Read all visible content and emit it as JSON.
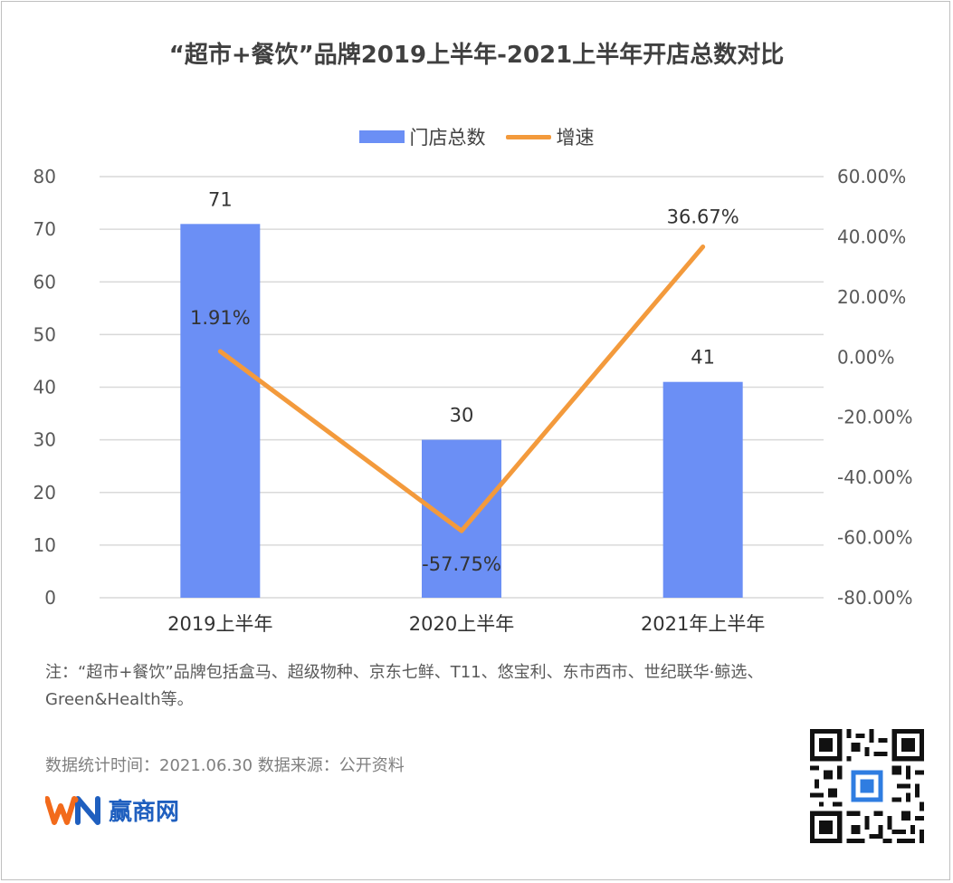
{
  "title": "“超市+餐饮”品牌2019上半年-2021上半年开店总数对比",
  "legend": {
    "bar_label": "门店总数",
    "line_label": "增速"
  },
  "colors": {
    "bar": "#6b8ff5",
    "line": "#f39a3c",
    "grid": "#d9d9d9",
    "axis_text": "#595959",
    "brand_blue": "#1f5fbf",
    "brand_orange": "#f26a1b"
  },
  "chart_data": {
    "type": "bar",
    "categories": [
      "2019上半年",
      "2020上半年",
      "2021年上半年"
    ],
    "series": [
      {
        "name": "门店总数",
        "type": "bar",
        "axis": "left",
        "values": [
          71,
          30,
          41
        ],
        "labels": [
          "71",
          "30",
          "41"
        ]
      },
      {
        "name": "增速",
        "type": "line",
        "axis": "right",
        "values": [
          1.91,
          -57.75,
          36.67
        ],
        "labels": [
          "1.91%",
          "-57.75%",
          "36.67%"
        ]
      }
    ],
    "left_axis": {
      "min": 0,
      "max": 80,
      "step": 10,
      "ticks": [
        "0",
        "10",
        "20",
        "30",
        "40",
        "50",
        "60",
        "70",
        "80"
      ]
    },
    "right_axis": {
      "min": -80,
      "max": 60,
      "step": 20,
      "ticks": [
        "-80.00%",
        "-60.00%",
        "-40.00%",
        "-20.00%",
        "0.00%",
        "20.00%",
        "40.00%",
        "60.00%"
      ]
    },
    "grid": true,
    "legend_position": "top"
  },
  "note": "注：“超市+餐饮”品牌包括盒马、超级物种、京东七鲜、T11、悠宝利、东市西市、世纪联华·鲸选、Green&Health等。",
  "source": "数据统计时间：2021.06.30  数据来源：公开资料",
  "brand": {
    "logo_text": "WN",
    "name": "赢商网",
    "qr_icon": "qr-code-icon"
  }
}
